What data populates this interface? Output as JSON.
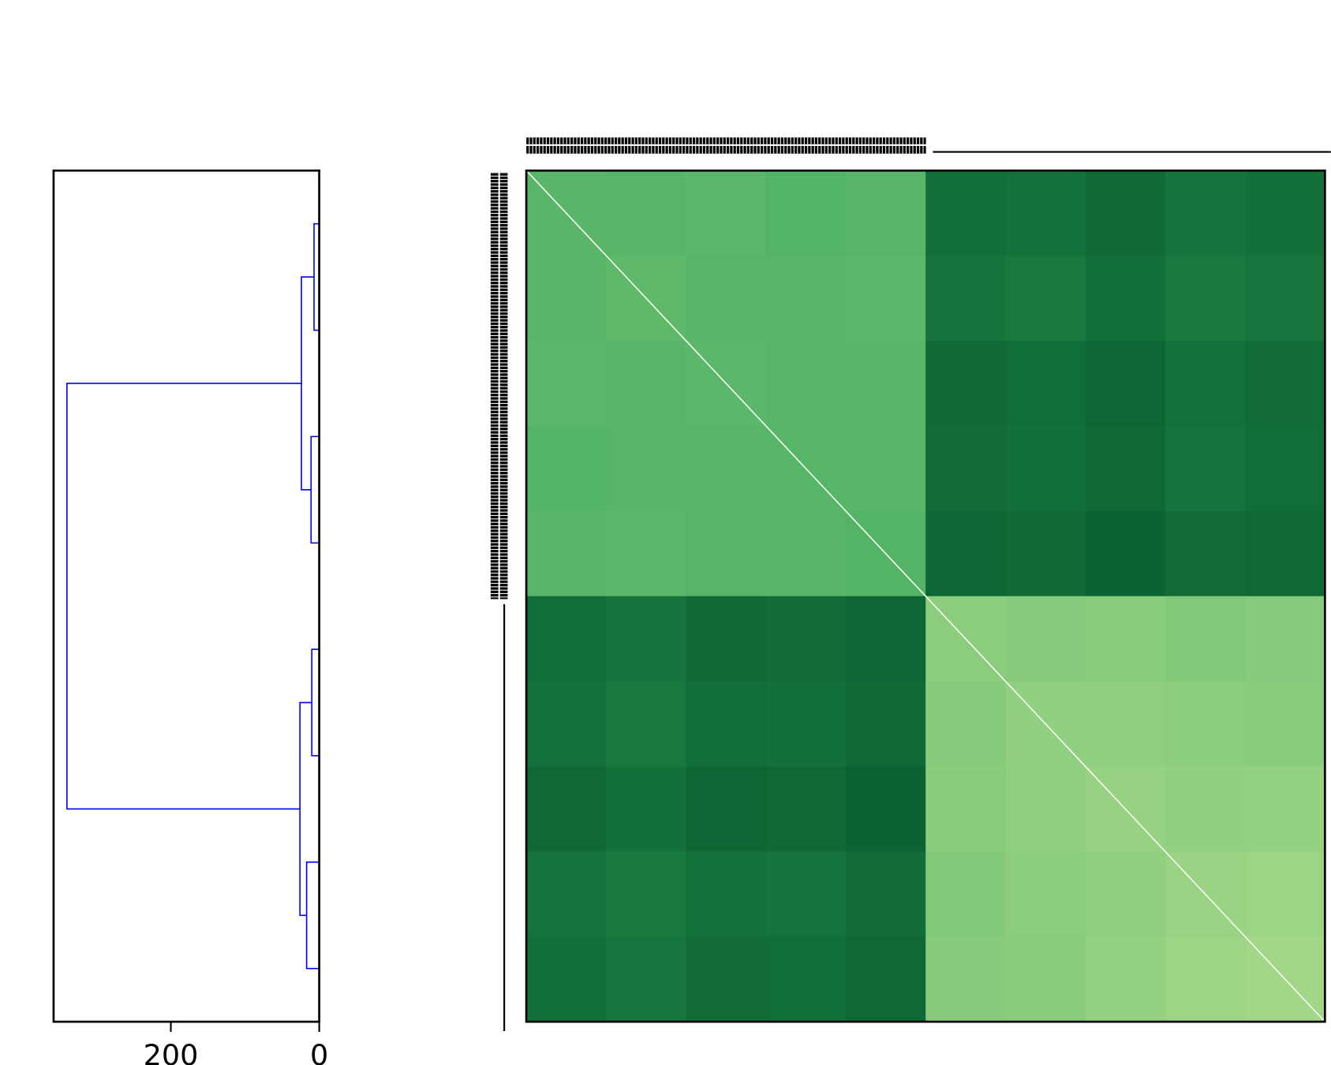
{
  "chart_data": {
    "type": "clustermap",
    "dendrogram": {
      "xlim": [
        358,
        0
      ],
      "xticks": [
        200,
        0
      ],
      "color": "#0000ff",
      "tree": {
        "height": 340,
        "children": [
          {
            "height": 24,
            "children": [
              {
                "height": 7,
                "children": [
                  {
                    "height": 0
                  },
                  {
                    "height": 0
                  }
                ]
              },
              {
                "height": 11,
                "children": [
                  {
                    "height": 0
                  },
                  {
                    "height": 0
                  }
                ]
              }
            ]
          },
          {
            "height": 26,
            "children": [
              {
                "height": 10,
                "children": [
                  {
                    "height": 0
                  },
                  {
                    "height": 0
                  }
                ]
              },
              {
                "height": 17,
                "children": [
                  {
                    "height": 0
                  },
                  {
                    "height": 0
                  }
                ]
              }
            ]
          }
        ]
      }
    },
    "heatmap": {
      "vlim": [
        0,
        1
      ],
      "colormap": [
        "#00592b",
        "#4bb062",
        "#d2ed9b"
      ],
      "values": [
        [
          0.55,
          0.54,
          0.56,
          0.53,
          0.55,
          0.12,
          0.14,
          0.1,
          0.15,
          0.13
        ],
        [
          0.54,
          0.57,
          0.55,
          0.54,
          0.56,
          0.15,
          0.17,
          0.13,
          0.18,
          0.16
        ],
        [
          0.56,
          0.55,
          0.56,
          0.55,
          0.54,
          0.1,
          0.12,
          0.08,
          0.14,
          0.11
        ],
        [
          0.53,
          0.54,
          0.55,
          0.54,
          0.55,
          0.11,
          0.13,
          0.09,
          0.15,
          0.12
        ],
        [
          0.55,
          0.56,
          0.54,
          0.55,
          0.53,
          0.08,
          0.1,
          0.06,
          0.11,
          0.09
        ],
        [
          0.12,
          0.15,
          0.1,
          0.11,
          0.08,
          0.74,
          0.72,
          0.73,
          0.7,
          0.72
        ],
        [
          0.14,
          0.17,
          0.12,
          0.13,
          0.1,
          0.72,
          0.76,
          0.75,
          0.74,
          0.73
        ],
        [
          0.1,
          0.13,
          0.08,
          0.09,
          0.06,
          0.73,
          0.75,
          0.78,
          0.76,
          0.77
        ],
        [
          0.15,
          0.18,
          0.14,
          0.15,
          0.11,
          0.7,
          0.74,
          0.76,
          0.79,
          0.8
        ],
        [
          0.13,
          0.16,
          0.11,
          0.12,
          0.09,
          0.72,
          0.73,
          0.77,
          0.8,
          0.82
        ]
      ]
    }
  }
}
